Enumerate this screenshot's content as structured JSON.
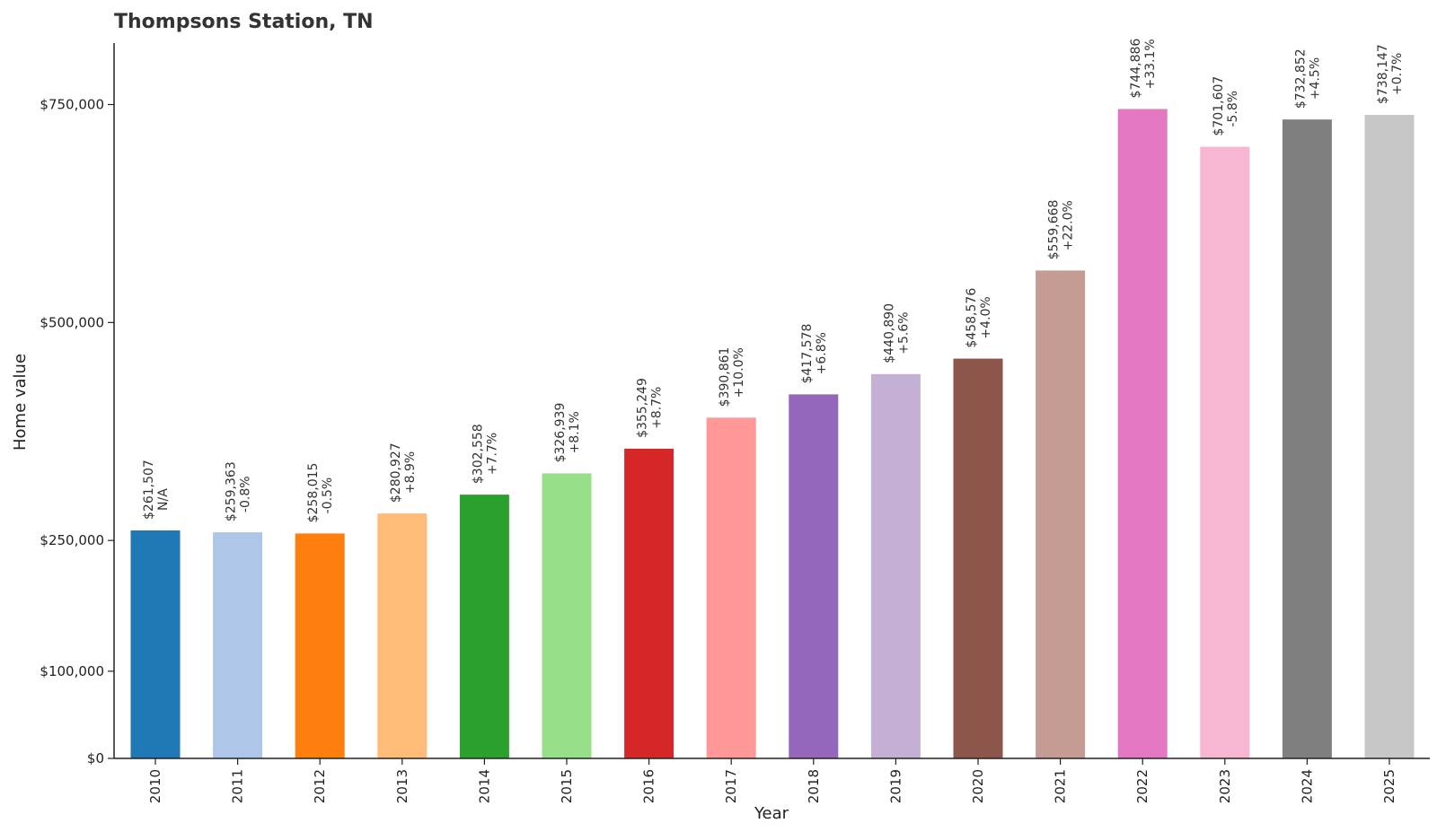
{
  "chart_data": {
    "type": "bar",
    "title": "Thompsons Station, TN",
    "xlabel": "Year",
    "ylabel": "Home value",
    "ylim": [
      0,
      820000
    ],
    "yticks": [
      0,
      100000,
      250000,
      500000,
      750000
    ],
    "ytick_labels": [
      "$0",
      "$100,000",
      "$250,000",
      "$500,000",
      "$750,000"
    ],
    "grid": false,
    "legend": "none",
    "categories": [
      "2010",
      "2011",
      "2012",
      "2013",
      "2014",
      "2015",
      "2016",
      "2017",
      "2018",
      "2019",
      "2020",
      "2021",
      "2022",
      "2023",
      "2024",
      "2025"
    ],
    "values": [
      261507,
      259363,
      258015,
      280927,
      302558,
      326939,
      355249,
      390861,
      417578,
      440890,
      458576,
      559668,
      744886,
      701607,
      732852,
      738147
    ],
    "value_labels": [
      "$261,507",
      "$259,363",
      "$258,015",
      "$280,927",
      "$302,558",
      "$326,939",
      "$355,249",
      "$390,861",
      "$417,578",
      "$440,890",
      "$458,576",
      "$559,668",
      "$744,886",
      "$701,607",
      "$732,852",
      "$738,147"
    ],
    "change_labels": [
      "N/A",
      "-0.8%",
      "-0.5%",
      "+8.9%",
      "+7.7%",
      "+8.1%",
      "+8.7%",
      "+10.0%",
      "+6.8%",
      "+5.6%",
      "+4.0%",
      "+22.0%",
      "+33.1%",
      "-5.8%",
      "+4.5%",
      "+0.7%"
    ],
    "colors": [
      "#1f77b4",
      "#aec7e8",
      "#ff7f0e",
      "#ffbb78",
      "#2ca02c",
      "#98df8a",
      "#d62728",
      "#ff9896",
      "#9467bd",
      "#c5b0d5",
      "#8c564b",
      "#c49c94",
      "#e377c2",
      "#f7b6d2",
      "#7f7f7f",
      "#c7c7c7"
    ]
  }
}
